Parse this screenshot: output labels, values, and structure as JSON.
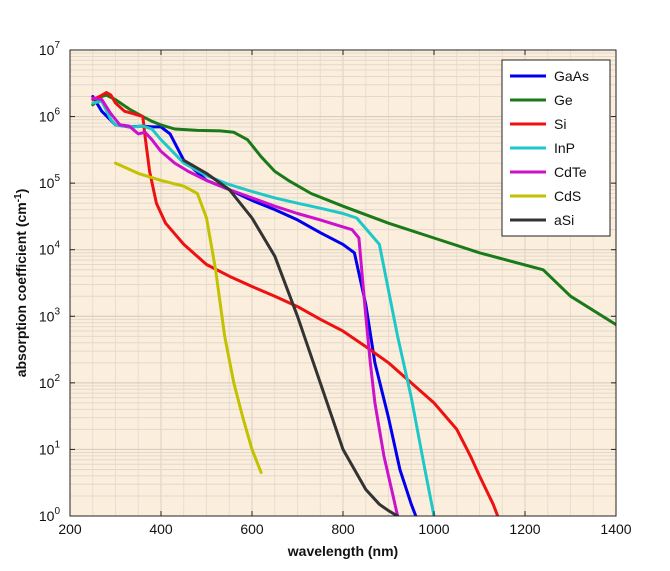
{
  "chart_data": {
    "type": "line",
    "title": "",
    "xlabel": "wavelength (nm)",
    "ylabel": "absorption coefficient (cm",
    "ylabel_superscript": "-1",
    "ylabel_suffix": ")",
    "xlim": [
      200,
      1400
    ],
    "ylim": [
      1,
      10000000
    ],
    "yscale": "log",
    "grid": true,
    "legend_position": "top-right",
    "plot_background": "#fbeedd",
    "x_ticks": [
      "200",
      "400",
      "600",
      "800",
      "1000",
      "1200",
      "1400"
    ],
    "y_ticks": [
      {
        "base": "10",
        "exp": "0"
      },
      {
        "base": "10",
        "exp": "1"
      },
      {
        "base": "10",
        "exp": "2"
      },
      {
        "base": "10",
        "exp": "3"
      },
      {
        "base": "10",
        "exp": "4"
      },
      {
        "base": "10",
        "exp": "5"
      },
      {
        "base": "10",
        "exp": "6"
      },
      {
        "base": "10",
        "exp": "7"
      }
    ],
    "series": [
      {
        "name": "GaAs",
        "color": "#0000ee",
        "x": [
          250,
          270,
          300,
          330,
          360,
          380,
          400,
          420,
          450,
          500,
          550,
          600,
          650,
          700,
          750,
          800,
          825,
          850,
          870,
          900,
          925,
          950,
          960
        ],
        "y": [
          2000000,
          1200000,
          750000,
          700000,
          720000,
          700000,
          700000,
          550000,
          220000,
          110000,
          80000,
          55000,
          40000,
          28000,
          18000,
          12000,
          9000,
          1500,
          200,
          30,
          5,
          1.5,
          1
        ]
      },
      {
        "name": "Ge",
        "color": "#1a7a1a",
        "x": [
          250,
          270,
          280,
          300,
          330,
          360,
          380,
          400,
          430,
          480,
          530,
          560,
          590,
          620,
          650,
          680,
          730,
          800,
          900,
          1000,
          1100,
          1240,
          1300,
          1400
        ],
        "y": [
          1500000,
          2000000,
          2100000,
          1800000,
          1300000,
          1000000,
          850000,
          750000,
          650000,
          620000,
          610000,
          580000,
          450000,
          250000,
          150000,
          110000,
          70000,
          45000,
          25000,
          15000,
          9000,
          5000,
          2000,
          750
        ]
      },
      {
        "name": "Si",
        "color": "#ee1111",
        "x": [
          250,
          265,
          280,
          290,
          300,
          320,
          340,
          360,
          365,
          375,
          390,
          410,
          450,
          500,
          550,
          600,
          650,
          700,
          750,
          800,
          850,
          900,
          950,
          1000,
          1050,
          1080,
          1100,
          1130,
          1140
        ],
        "y": [
          1800000,
          2000000,
          2300000,
          2100000,
          1600000,
          1200000,
          1100000,
          1000000,
          500000,
          150000,
          50000,
          25000,
          12000,
          6000,
          4000,
          2800,
          2000,
          1400,
          900,
          600,
          350,
          200,
          100,
          50,
          20,
          8,
          4,
          1.5,
          1
        ]
      },
      {
        "name": "InP",
        "color": "#1ec8c8",
        "x": [
          250,
          270,
          290,
          300,
          320,
          340,
          360,
          380,
          400,
          450,
          500,
          550,
          600,
          650,
          700,
          750,
          800,
          830,
          880,
          920,
          950,
          980,
          1000
        ],
        "y": [
          1600000,
          1700000,
          900000,
          750000,
          720000,
          700000,
          720000,
          650000,
          450000,
          200000,
          130000,
          95000,
          75000,
          60000,
          50000,
          42000,
          35000,
          30000,
          12000,
          500,
          60,
          5,
          1
        ]
      },
      {
        "name": "CdTe",
        "color": "#cc11cc",
        "x": [
          250,
          270,
          290,
          310,
          330,
          350,
          365,
          380,
          400,
          430,
          460,
          500,
          550,
          600,
          650,
          700,
          750,
          800,
          820,
          835,
          850,
          860,
          870,
          880,
          890,
          910,
          920
        ],
        "y": [
          1900000,
          1800000,
          1100000,
          750000,
          720000,
          550000,
          580000,
          450000,
          300000,
          200000,
          150000,
          110000,
          80000,
          60000,
          45000,
          35000,
          28000,
          22000,
          20000,
          15000,
          1000,
          200,
          50,
          20,
          8,
          2,
          1
        ]
      },
      {
        "name": "CdS",
        "color": "#c2c200",
        "x": [
          300,
          350,
          400,
          450,
          480,
          500,
          520,
          540,
          560,
          580,
          600,
          620
        ],
        "y": [
          200000,
          140000,
          110000,
          90000,
          70000,
          30000,
          5000,
          500,
          100,
          30,
          10,
          4.5
        ]
      },
      {
        "name": "aSi",
        "color": "#333333",
        "x": [
          450,
          500,
          550,
          600,
          650,
          700,
          750,
          800,
          850,
          880,
          900,
          920
        ],
        "y": [
          220000,
          140000,
          80000,
          30000,
          8000,
          1000,
          100,
          10,
          2.5,
          1.5,
          1.2,
          1
        ]
      }
    ]
  }
}
